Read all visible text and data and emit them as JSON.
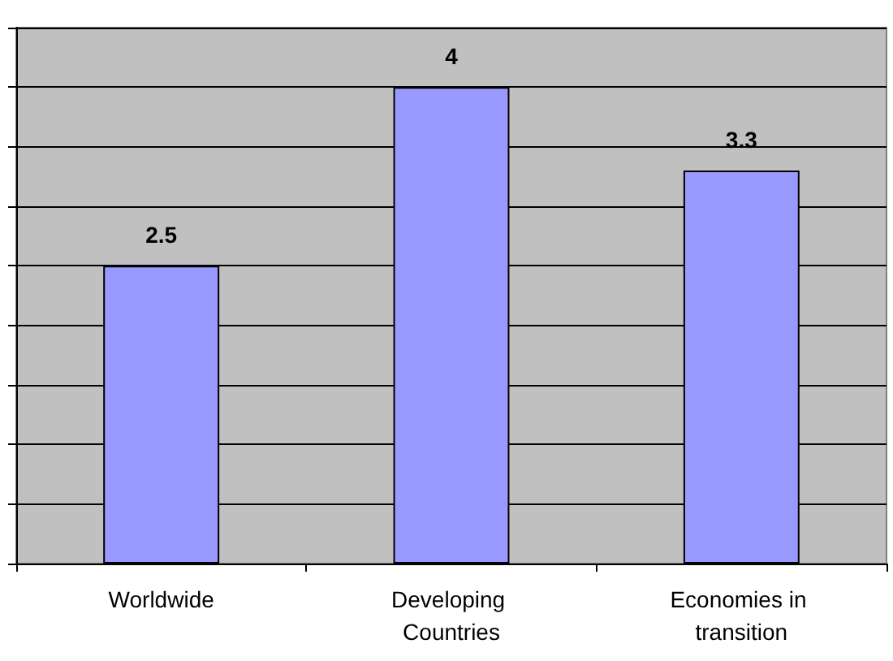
{
  "chart_data": {
    "type": "bar",
    "categories": [
      "Worldwide",
      "Developing Countries",
      "Economies in transition"
    ],
    "values": [
      2.5,
      4,
      3.3
    ],
    "color": "#9999ff",
    "ylim": [
      0,
      4.5
    ],
    "yticks": [
      {
        "value": 0,
        "label": null
      },
      {
        "value": 0.5,
        "label": null
      },
      {
        "value": 1,
        "label": null
      },
      {
        "value": 1.5,
        "label": null
      },
      {
        "value": 2,
        "label": null
      },
      {
        "value": 2.5,
        "label": null
      },
      {
        "value": 3,
        "label": null
      },
      {
        "value": 3.5,
        "label": null
      },
      {
        "value": 4,
        "label": null
      },
      {
        "value": 4.5,
        "label": null
      }
    ],
    "tick_labels": "x",
    "grid": true,
    "data_labels": true
  }
}
